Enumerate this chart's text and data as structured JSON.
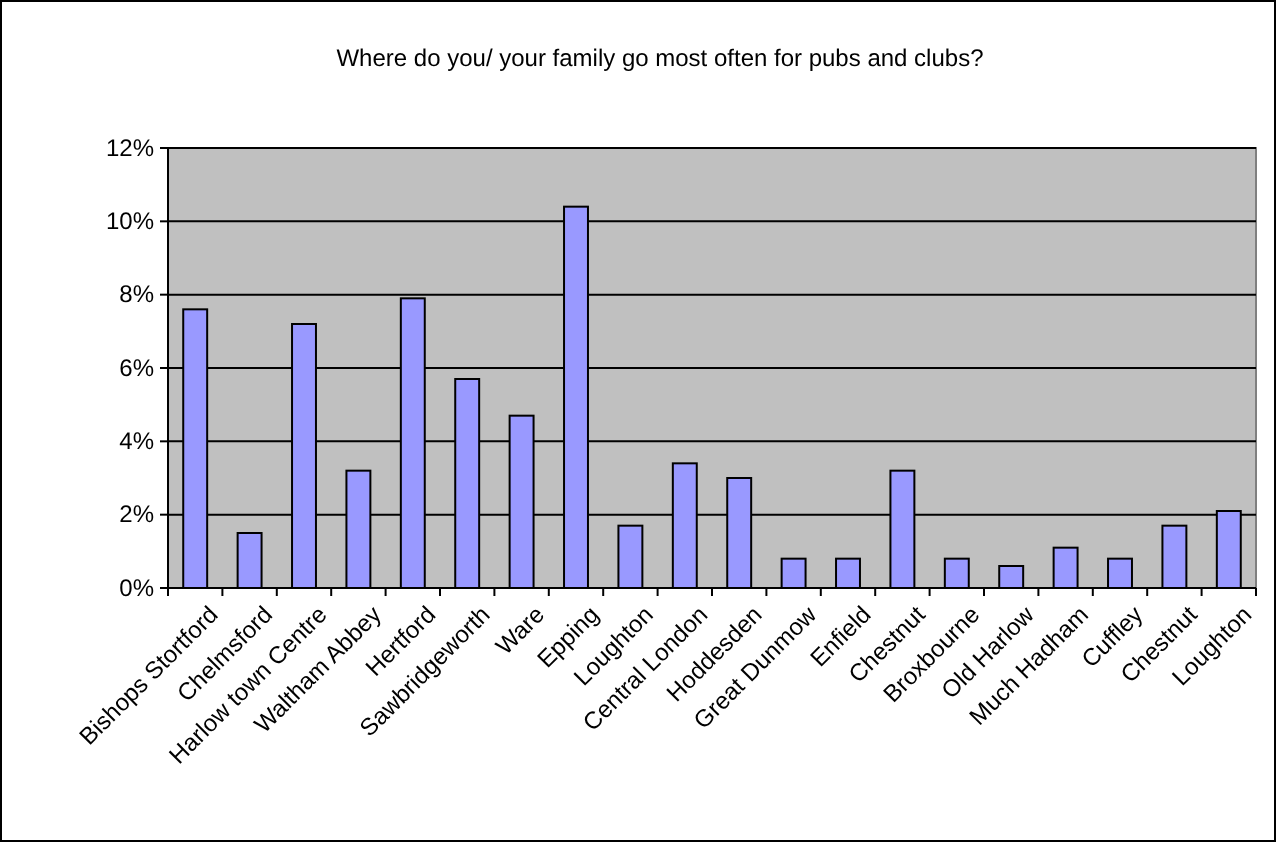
{
  "chart_data": {
    "type": "bar",
    "title": "Where do you/ your family go most often for pubs and clubs?",
    "categories": [
      "Bishops Stortford",
      "Chelmsford",
      "Harlow town Centre",
      "Waltham Abbey",
      "Hertford",
      "Sawbridgeworth",
      "Ware",
      "Epping",
      "Loughton",
      "Central London",
      "Hoddesden",
      "Great Dunmow",
      "Enfield",
      "Chestnut",
      "Broxbourne",
      "Old Harlow",
      "Much Hadham",
      "Cuffley",
      "Chestnut",
      "Loughton"
    ],
    "values": [
      7.6,
      1.5,
      7.2,
      3.2,
      7.9,
      5.7,
      4.7,
      10.4,
      1.7,
      3.4,
      3.0,
      0.8,
      0.8,
      3.2,
      0.8,
      0.6,
      1.1,
      0.8,
      1.7,
      2.1
    ],
    "color": "#9999ff",
    "ylim": [
      0,
      12
    ],
    "yticks": [
      {
        "value": 0,
        "label": "0%"
      },
      {
        "value": 2,
        "label": "2%"
      },
      {
        "value": 4,
        "label": "4%"
      },
      {
        "value": 6,
        "label": "6%"
      },
      {
        "value": 8,
        "label": "8%"
      },
      {
        "value": 10,
        "label": "10%"
      },
      {
        "value": 12,
        "label": "12%"
      }
    ],
    "grid": "y"
  }
}
